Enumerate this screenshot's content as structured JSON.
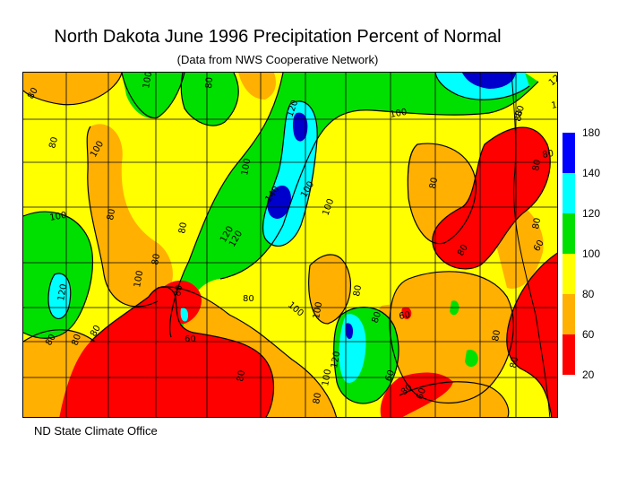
{
  "title": "North Dakota June 1996 Precipitation Percent of Normal",
  "subtitle": "(Data from NWS Cooperative Network)",
  "credit": "ND State Climate Office",
  "legend": {
    "ticks": [
      "180",
      "140",
      "120",
      "100",
      "80",
      "60",
      "20"
    ],
    "classes": [
      {
        "range": "140-180",
        "color": "#0000ff"
      },
      {
        "range": "120-140",
        "color": "#00ffff"
      },
      {
        "range": "100-120",
        "color": "#00e000"
      },
      {
        "range": "80-100",
        "color": "#ffff00"
      },
      {
        "range": "60-80",
        "color": "#ffb000"
      },
      {
        "range": "20-60",
        "color": "#ff0000"
      }
    ]
  },
  "contour_labels": [
    "80",
    "100",
    "80",
    "100",
    "120",
    "100",
    "120",
    "100",
    "80",
    "80",
    "80",
    "100",
    "80",
    "120",
    "140",
    "100",
    "120",
    "100",
    "80",
    "80",
    "100",
    "120",
    "100",
    "100",
    "80",
    "60",
    "80",
    "80",
    "60",
    "80",
    "80",
    "80",
    "80",
    "80",
    "80",
    "120",
    "100",
    "80",
    "80",
    "80",
    "60",
    "80",
    "80",
    "60",
    "80",
    "60",
    "80",
    "80",
    "100"
  ]
}
